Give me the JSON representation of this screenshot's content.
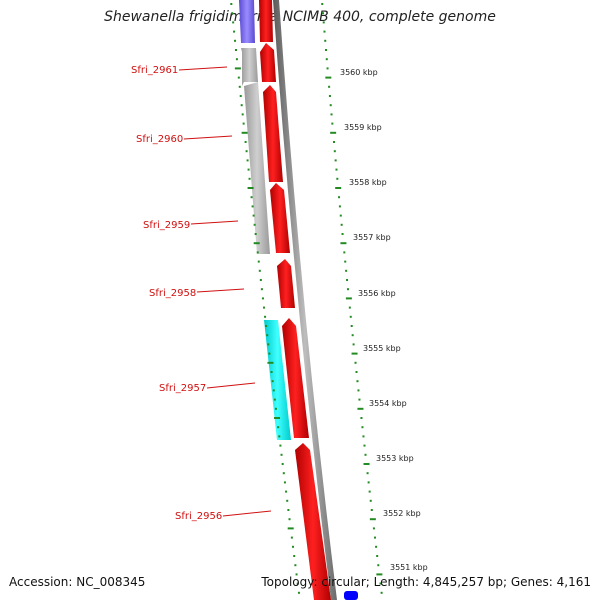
{
  "title": "Shewanella frigidimarina NCIMB 400, complete genome",
  "footer": {
    "accession": "Accession: NC_008345",
    "summary": "Topology: circular; Length: 4,845,257 bp; Genes: 4,161"
  },
  "colors": {
    "forward_cds": "#ff0000",
    "reverse_cds_grey": "#b8b8b8",
    "reverse_cds_cyan": "#00ffff",
    "reverse_cds_blue": "#7b68ee",
    "backbone": "#808080",
    "tick": "#228b22",
    "label": "#d01010",
    "bottom_marker": "#0000ff"
  },
  "scale": {
    "unit": "kbp",
    "labels": [
      "3560 kbp",
      "3559 kbp",
      "3558 kbp",
      "3557 kbp",
      "3556 kbp",
      "3555 kbp",
      "3554 kbp",
      "3553 kbp",
      "3552 kbp",
      "3551 kbp"
    ]
  },
  "genes": [
    {
      "name": "Sfri_2961"
    },
    {
      "name": "Sfri_2960"
    },
    {
      "name": "Sfri_2959"
    },
    {
      "name": "Sfri_2958"
    },
    {
      "name": "Sfri_2957"
    },
    {
      "name": "Sfri_2956"
    }
  ]
}
